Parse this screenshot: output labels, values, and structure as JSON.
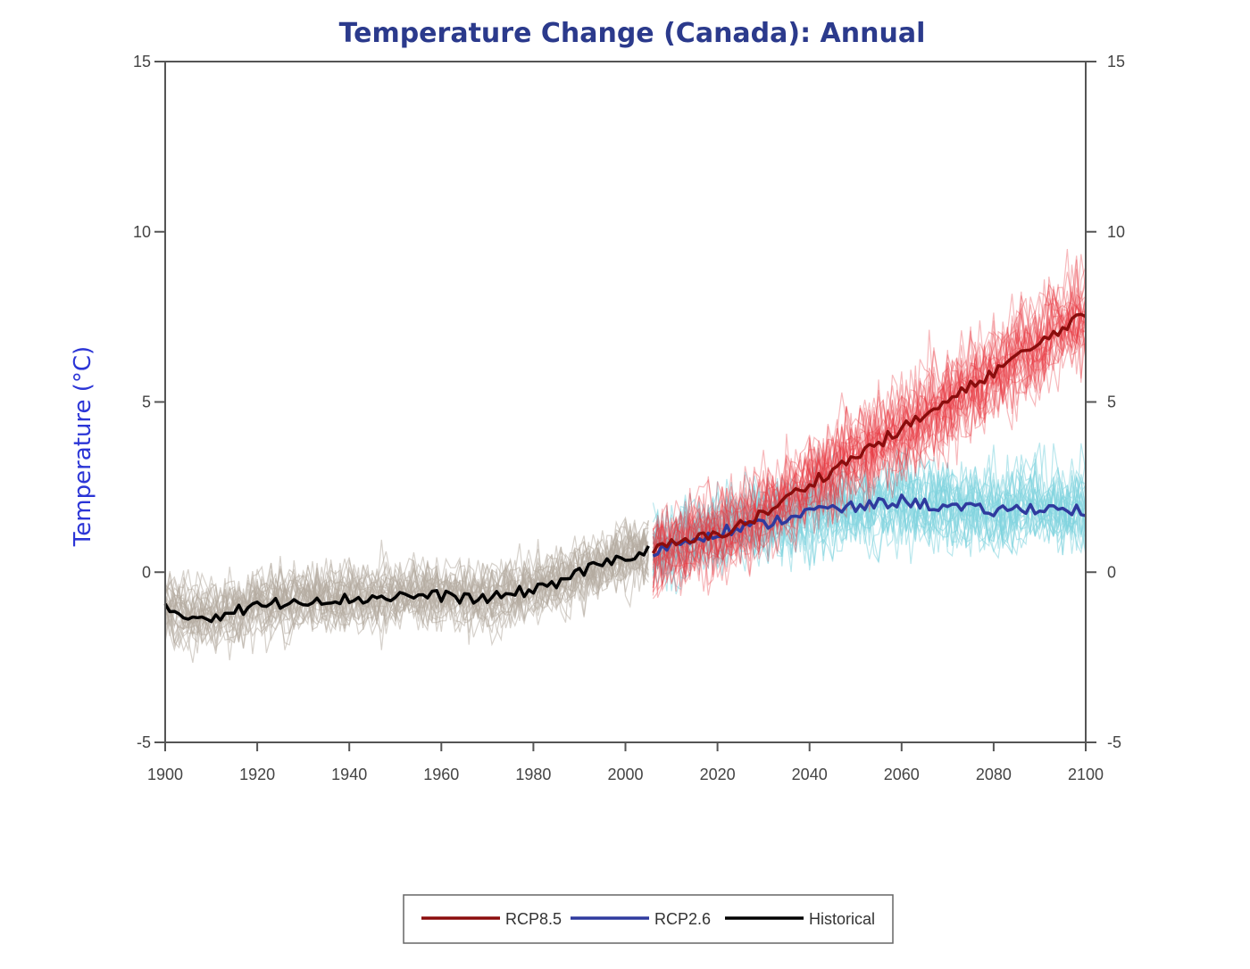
{
  "chart_data": {
    "type": "line",
    "title": "Temperature Change (Canada): Annual",
    "ylabel": "Temperature (°C)",
    "xlabel": "",
    "xlim": [
      1900,
      2100
    ],
    "ylim": [
      -5,
      15
    ],
    "xticks": [
      "1900",
      "1920",
      "1940",
      "1960",
      "1980",
      "2000",
      "2020",
      "2040",
      "2060",
      "2080",
      "2100"
    ],
    "yticks": [
      "15",
      "10",
      "5",
      "0",
      "-5"
    ],
    "y_axis_right": true,
    "grid": false,
    "legend_position": "bottom-center",
    "colors": {
      "title": "#2b3a8c",
      "ylabel": "#2b35d6",
      "rcp85_mean": "#8b0d0d",
      "rcp85_members": "#e8363f",
      "rcp26_mean": "#2f3a9e",
      "rcp26_members": "#7fd3df",
      "historical_mean": "#000000",
      "historical_members": "#b5aba1"
    },
    "series": [
      {
        "name": "RCP8.5",
        "x": [
          2006,
          2010,
          2020,
          2030,
          2040,
          2050,
          2060,
          2070,
          2080,
          2090,
          2098,
          2100
        ],
        "y": [
          0.6,
          0.8,
          1.1,
          1.7,
          2.6,
          3.4,
          4.2,
          5.0,
          5.9,
          6.7,
          7.5,
          7.4
        ]
      },
      {
        "name": "RCP2.6",
        "x": [
          2006,
          2010,
          2020,
          2030,
          2040,
          2050,
          2060,
          2070,
          2080,
          2090,
          2100
        ],
        "y": [
          0.6,
          0.8,
          1.2,
          1.4,
          1.8,
          1.9,
          2.1,
          1.9,
          1.8,
          1.9,
          1.8
        ]
      },
      {
        "name": "Historical",
        "x": [
          1900,
          1905,
          1910,
          1920,
          1930,
          1940,
          1950,
          1960,
          1970,
          1980,
          1985,
          1990,
          1995,
          2000,
          2005
        ],
        "y": [
          -1.1,
          -1.3,
          -1.3,
          -1.0,
          -0.8,
          -0.8,
          -0.7,
          -0.7,
          -0.8,
          -0.5,
          -0.3,
          0.0,
          0.2,
          0.5,
          0.6
        ]
      }
    ],
    "ensembles": [
      {
        "group": "Historical",
        "x_start": 1900,
        "x_end": 2005,
        "members": 30,
        "spread": 1.0
      },
      {
        "group": "RCP2.6",
        "x_start": 2006,
        "x_end": 2100,
        "members": 25,
        "spread": 1.4
      },
      {
        "group": "RCP8.5",
        "x_start": 2006,
        "x_end": 2100,
        "members": 30,
        "spread": 1.6
      }
    ],
    "legend": [
      "RCP8.5",
      "RCP2.6",
      "Historical"
    ]
  }
}
